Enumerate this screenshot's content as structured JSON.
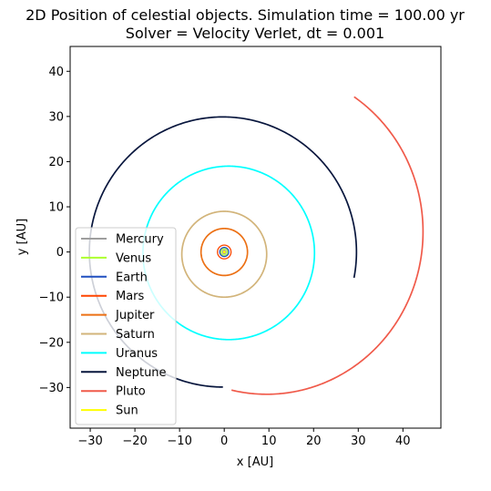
{
  "chart_data": {
    "type": "line",
    "title": "2D Position of celestial objects. Simulation time = 100.00 yr",
    "subtitle": "Solver = Velocity Verlet,  dt = 0.001",
    "xlabel": "x [AU]",
    "ylabel": "y [AU]",
    "xlim": [
      -34.5,
      48.5
    ],
    "ylim": [
      -39,
      45.5
    ],
    "xticks": [
      -30,
      -20,
      -10,
      0,
      10,
      20,
      30,
      40
    ],
    "yticks": [
      -30,
      -20,
      -10,
      0,
      10,
      20,
      30,
      40
    ],
    "xtick_labels": [
      "−30",
      "−20",
      "−10",
      "0",
      "10",
      "20",
      "30",
      "40"
    ],
    "ytick_labels": [
      "−30",
      "−20",
      "−10",
      "0",
      "10",
      "20",
      "30",
      "40"
    ],
    "grid": false,
    "legend_position": "lower-left",
    "series": [
      {
        "name": "Mercury",
        "color": "#9e9e9e",
        "orbit": {
          "cx": 0.0,
          "cy": 0.0,
          "rx": 0.39,
          "ry": 0.39
        },
        "arc_deg": [
          0,
          360
        ]
      },
      {
        "name": "Venus",
        "color": "#adff2f",
        "orbit": {
          "cx": 0.0,
          "cy": 0.0,
          "rx": 0.72,
          "ry": 0.72
        },
        "arc_deg": [
          0,
          360
        ]
      },
      {
        "name": "Earth",
        "color": "#1f4fbf",
        "orbit": {
          "cx": 0.0,
          "cy": 0.0,
          "rx": 1.0,
          "ry": 1.0
        },
        "arc_deg": [
          0,
          360
        ]
      },
      {
        "name": "Mars",
        "color": "#ff4500",
        "orbit": {
          "cx": 0.0,
          "cy": 0.0,
          "rx": 1.52,
          "ry": 1.52
        },
        "arc_deg": [
          0,
          360
        ]
      },
      {
        "name": "Jupiter",
        "color": "#ec7014",
        "orbit": {
          "cx": 0.0,
          "cy": 0.0,
          "rx": 5.2,
          "ry": 5.2
        },
        "arc_deg": [
          0,
          360
        ]
      },
      {
        "name": "Saturn",
        "color": "#d2b47a",
        "orbit": {
          "cx": 0.0,
          "cy": -0.5,
          "rx": 9.5,
          "ry": 9.5
        },
        "arc_deg": [
          0,
          360
        ]
      },
      {
        "name": "Uranus",
        "color": "#00ffff",
        "orbit": {
          "cx": 1.0,
          "cy": -0.2,
          "rx": 19.2,
          "ry": 19.2
        },
        "arc_deg": [
          0,
          360
        ]
      },
      {
        "name": "Neptune",
        "color": "#08163d",
        "orbit": {
          "cx": -0.3,
          "cy": 0.0,
          "rx": 29.9,
          "ry": 29.9
        },
        "arc_deg": [
          -11,
          270
        ]
      },
      {
        "name": "Pluto",
        "color": "#f05a4a",
        "orbit": {
          "cx": 9.5,
          "cy": 4.5,
          "rx": 35.0,
          "ry": 36.0
        },
        "arc_deg": [
          -103,
          56
        ]
      },
      {
        "name": "Sun",
        "color": "#ffff00",
        "orbit": {
          "cx": 0.0,
          "cy": 0.0,
          "rx": 0.0,
          "ry": 0.0
        },
        "arc_deg": [
          0,
          0
        ]
      }
    ]
  }
}
